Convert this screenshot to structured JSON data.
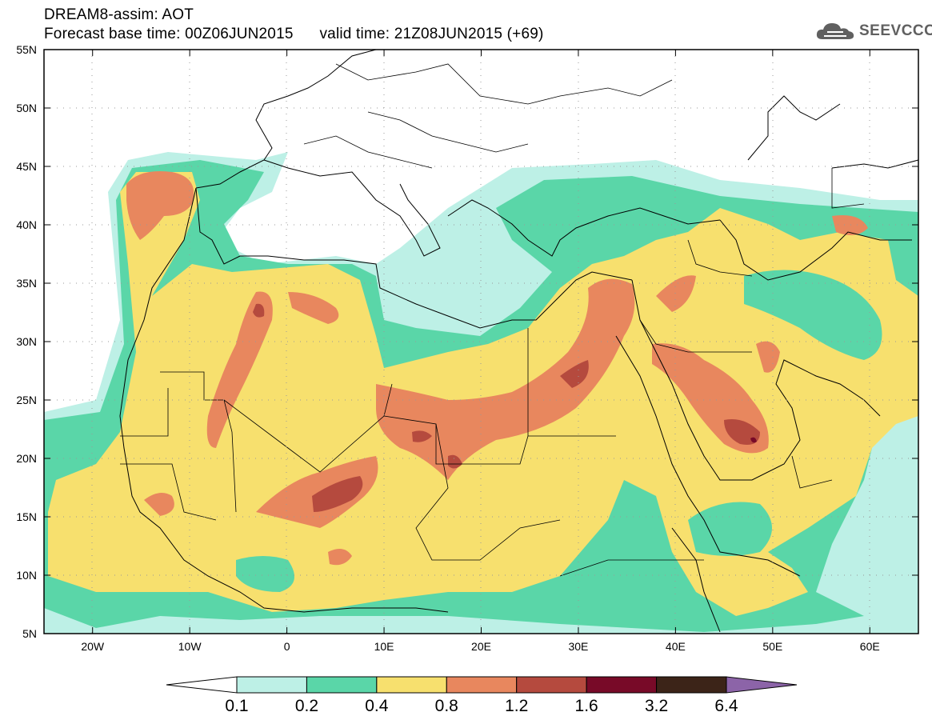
{
  "header": {
    "title_line1": "DREAM8-assim: AOT",
    "base_time_label": "Forecast base time: 00Z06JUN2015",
    "valid_time_label": "valid time: 21Z08JUN2015 (+69)"
  },
  "logo": {
    "text": "SEEVCCC",
    "icon": "cloud-icon",
    "color": "#606060"
  },
  "map": {
    "lon_range": [
      -25,
      65
    ],
    "lat_range": [
      5,
      55
    ],
    "lat_ticks": [
      {
        "value": 55,
        "label": "55N"
      },
      {
        "value": 50,
        "label": "50N"
      },
      {
        "value": 45,
        "label": "45N"
      },
      {
        "value": 40,
        "label": "40N"
      },
      {
        "value": 35,
        "label": "35N"
      },
      {
        "value": 30,
        "label": "30N"
      },
      {
        "value": 25,
        "label": "25N"
      },
      {
        "value": 20,
        "label": "20N"
      },
      {
        "value": 15,
        "label": "15N"
      },
      {
        "value": 10,
        "label": "10N"
      },
      {
        "value": 5,
        "label": "5N"
      }
    ],
    "lon_ticks": [
      {
        "value": -20,
        "label": "20W"
      },
      {
        "value": -10,
        "label": "10W"
      },
      {
        "value": 0,
        "label": "0"
      },
      {
        "value": 10,
        "label": "10E"
      },
      {
        "value": 20,
        "label": "20E"
      },
      {
        "value": 30,
        "label": "30E"
      },
      {
        "value": 40,
        "label": "40E"
      },
      {
        "value": 50,
        "label": "50E"
      },
      {
        "value": 60,
        "label": "60E"
      }
    ],
    "grid": "dotted"
  },
  "colorbar": {
    "levels": [
      "0.1",
      "0.2",
      "0.4",
      "0.8",
      "1.2",
      "1.6",
      "3.2",
      "6.4"
    ],
    "colors": {
      "below": "#ffffff",
      "bins": [
        "#bdf0e6",
        "#5ad6a8",
        "#f7e06e",
        "#e8875e",
        "#b54a3e",
        "#780a28",
        "#3c2418"
      ],
      "above": "#8c64a8"
    }
  },
  "colors": {
    "c1": "#bdf0e6",
    "c2": "#5ad6a8",
    "c3": "#f7e06e",
    "c4": "#e8875e",
    "c5": "#b54a3e",
    "c6": "#780a28"
  }
}
